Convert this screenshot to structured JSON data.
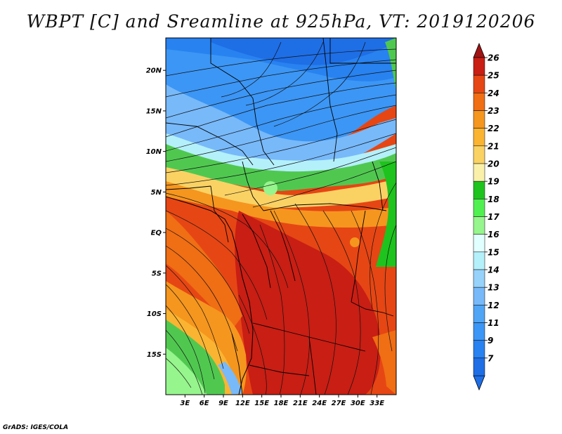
{
  "title": "WBPT [C] and Sreamline at 925hPa, VT: 2019120206",
  "credit": "GrADS: IGES/COLA",
  "map": {
    "lon_range": [
      0,
      36
    ],
    "lat_range": [
      -20,
      24
    ],
    "lat_ticks": [
      {
        "value": 20,
        "label": "20N"
      },
      {
        "value": 15,
        "label": "15N"
      },
      {
        "value": 10,
        "label": "10N"
      },
      {
        "value": 5,
        "label": "5N"
      },
      {
        "value": 0,
        "label": "EQ"
      },
      {
        "value": -5,
        "label": "5S"
      },
      {
        "value": -10,
        "label": "10S"
      },
      {
        "value": -15,
        "label": "15S"
      }
    ],
    "lon_ticks": [
      {
        "value": 3,
        "label": "3E"
      },
      {
        "value": 6,
        "label": "6E"
      },
      {
        "value": 9,
        "label": "9E"
      },
      {
        "value": 12,
        "label": "12E"
      },
      {
        "value": 15,
        "label": "15E"
      },
      {
        "value": 18,
        "label": "18E"
      },
      {
        "value": 21,
        "label": "21E"
      },
      {
        "value": 24,
        "label": "24E"
      },
      {
        "value": 27,
        "label": "27E"
      },
      {
        "value": 30,
        "label": "30E"
      },
      {
        "value": 33,
        "label": "33E"
      }
    ]
  },
  "colorbar": {
    "levels": [
      {
        "label": "7",
        "color": "#1e6ee6"
      },
      {
        "label": "9",
        "color": "#2882f0"
      },
      {
        "label": "11",
        "color": "#3c96f5"
      },
      {
        "label": "12",
        "color": "#50a5f5"
      },
      {
        "label": "13",
        "color": "#78b9fa"
      },
      {
        "label": "14",
        "color": "#96d2fa"
      },
      {
        "label": "15",
        "color": "#b4f0fa"
      },
      {
        "label": "16",
        "color": "#e1ffff"
      },
      {
        "label": "17",
        "color": "#96f58c"
      },
      {
        "label": "18",
        "color": "#50f050"
      },
      {
        "label": "19",
        "color": "#1ec31e"
      },
      {
        "label": "20",
        "color": "#faf0aa"
      },
      {
        "label": "21",
        "color": "#fad264"
      },
      {
        "label": "22",
        "color": "#fab432"
      },
      {
        "label": "23",
        "color": "#f5961e"
      },
      {
        "label": "24",
        "color": "#f06e14"
      },
      {
        "label": "25",
        "color": "#e64614"
      },
      {
        "label": "26",
        "color": "#c81e14"
      }
    ],
    "under_color": "#1e6ee6",
    "over_color": "#a01414"
  }
}
